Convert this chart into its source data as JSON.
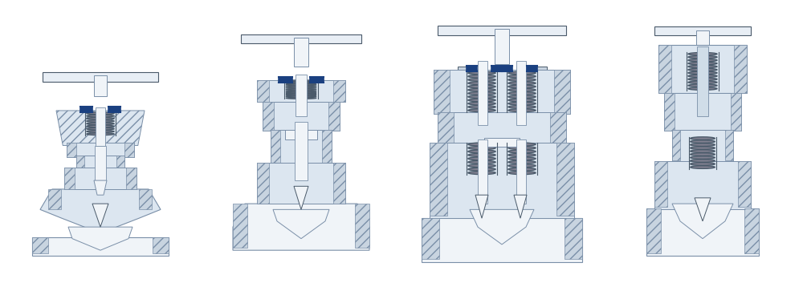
{
  "bg_color": "#ffffff",
  "line_color": "#7a8fa8",
  "dark_line": "#4a5a6a",
  "hatch_color": "#b0bfcc",
  "blue_accent": "#1a4080",
  "spring_color": "#808090",
  "fill_light": "#dce6f0",
  "fill_white": "#f0f4f8",
  "fill_mid": "#c8d4e0",
  "stem_color": "#e8eef4",
  "valve_centers": [
    0.125,
    0.375,
    0.625,
    0.875
  ],
  "figsize": [
    10.0,
    3.63
  ]
}
